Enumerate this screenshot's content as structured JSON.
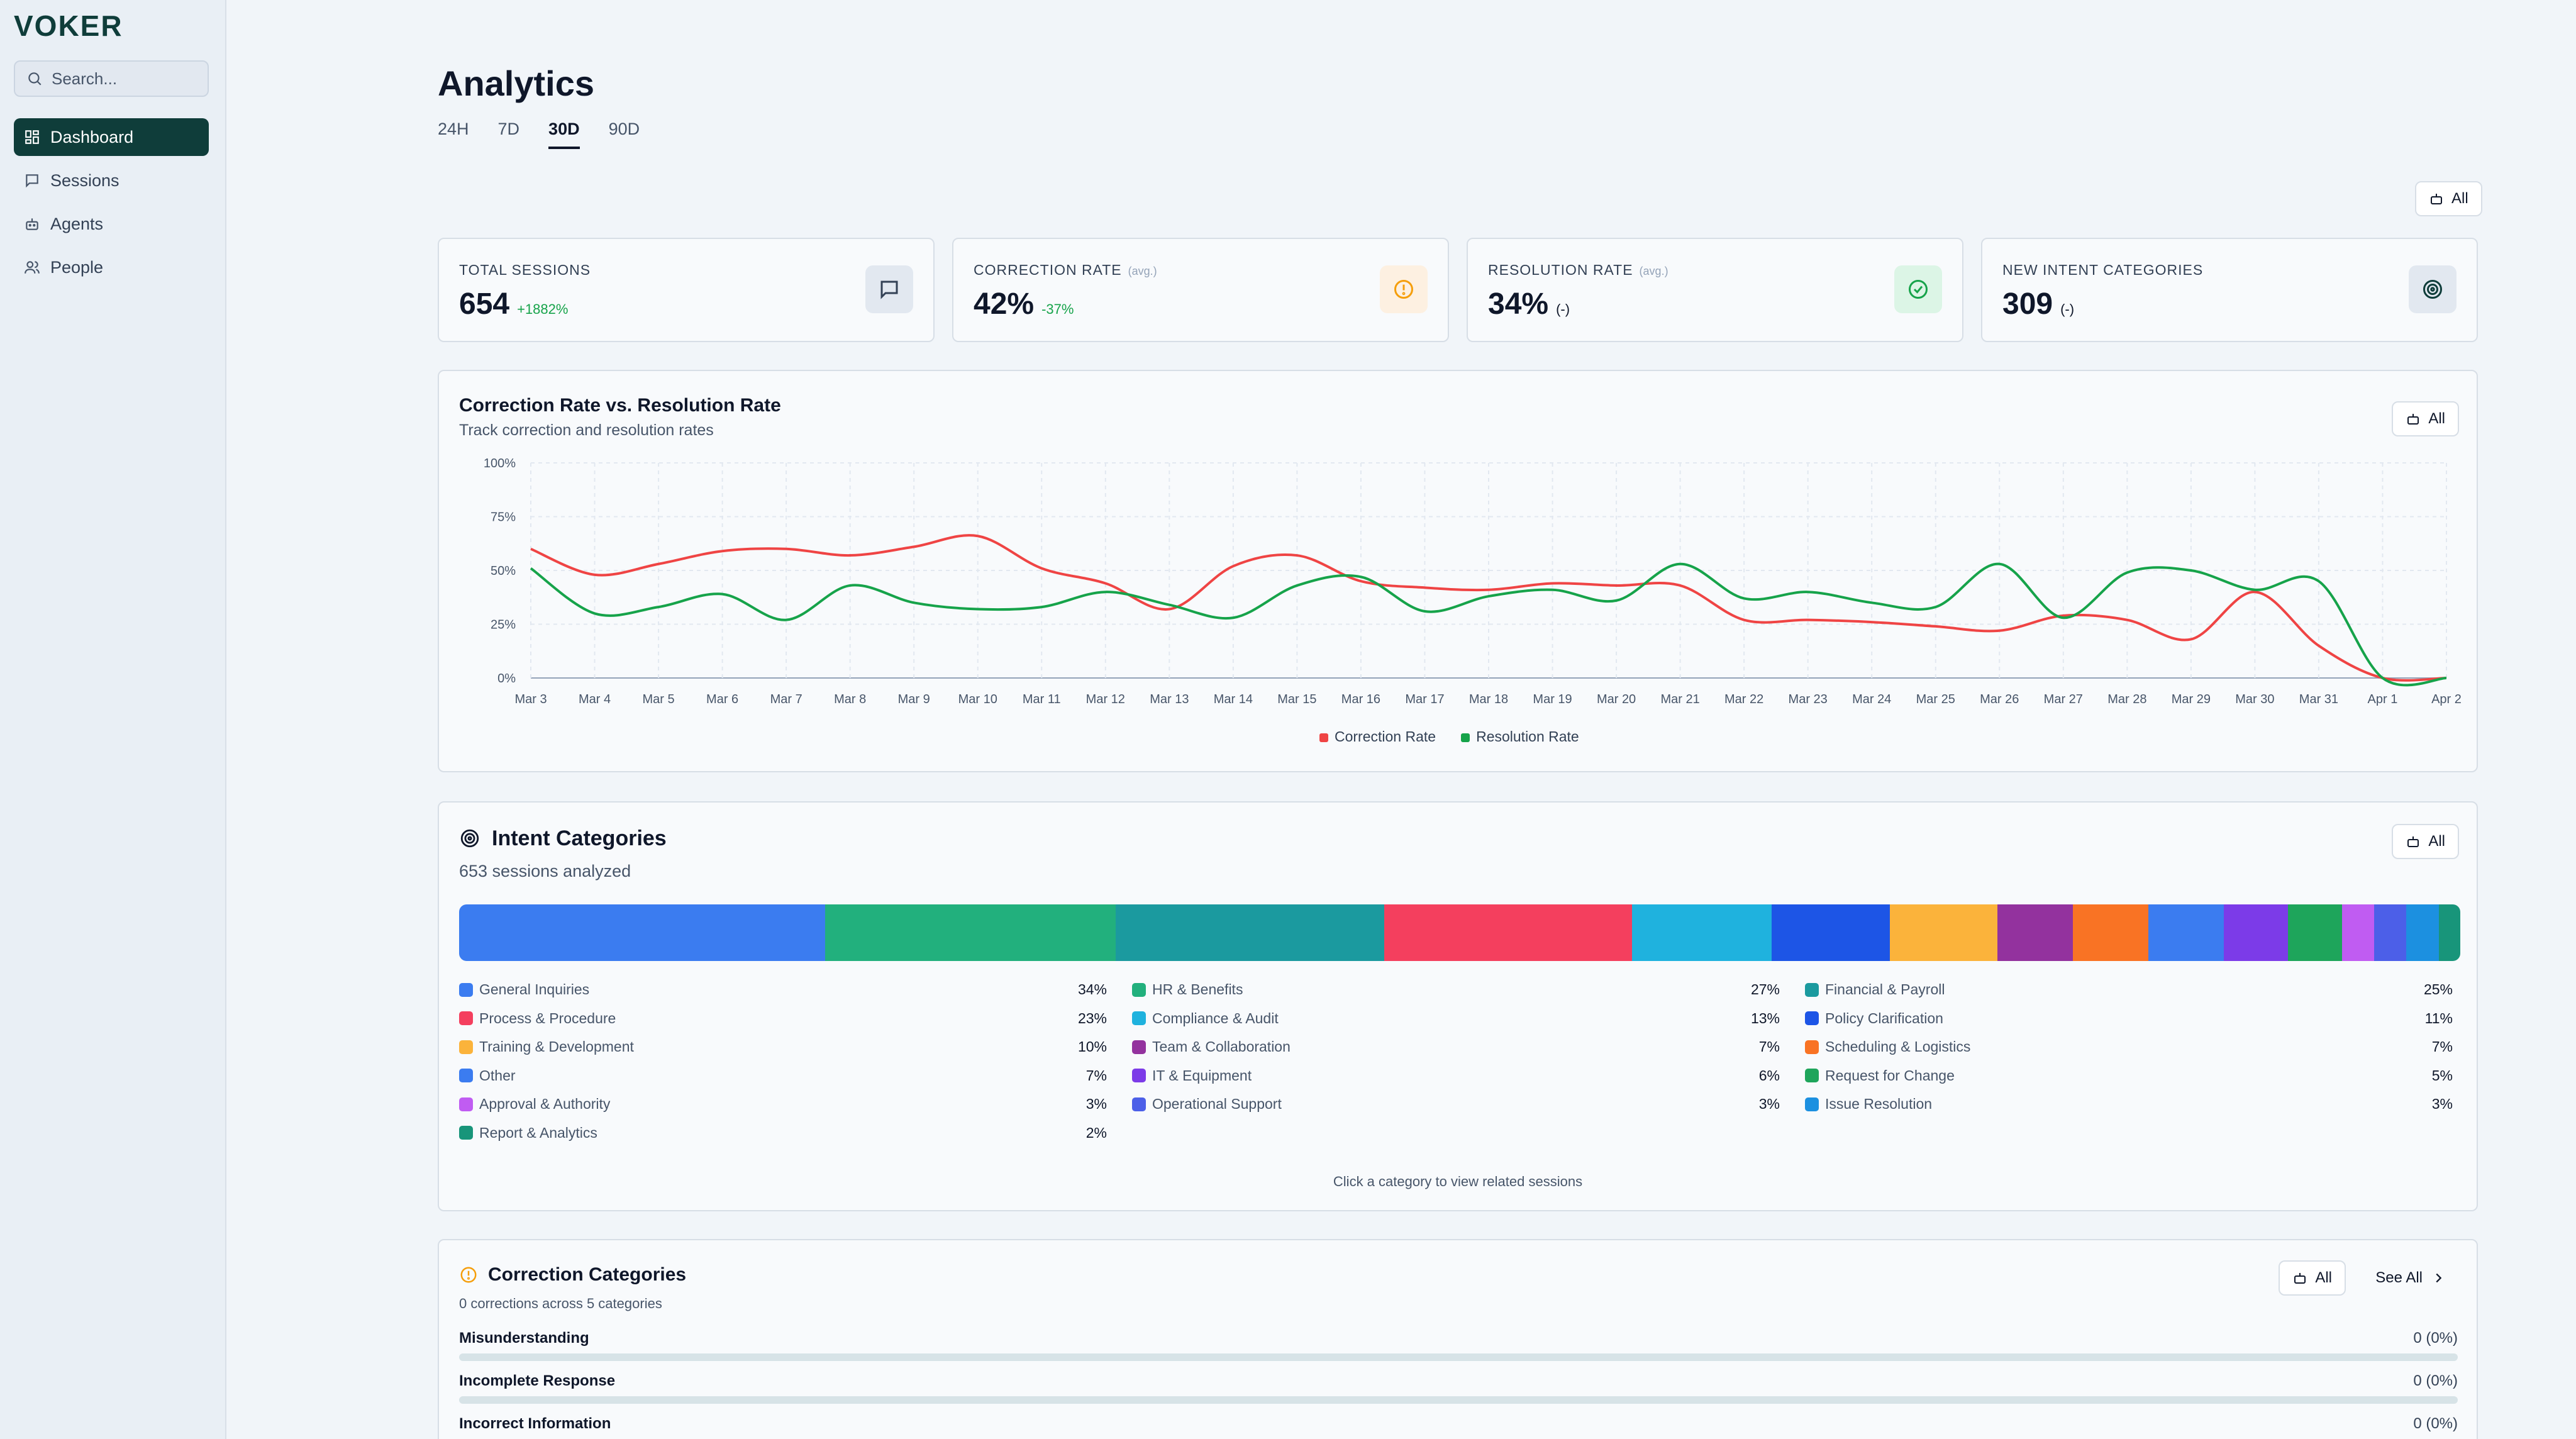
{
  "app": {
    "logo": "VOKER"
  },
  "sidebar": {
    "search_placeholder": "Search...",
    "items": [
      {
        "label": "Dashboard",
        "icon": "dashboard-icon",
        "active": true
      },
      {
        "label": "Sessions",
        "icon": "chat-icon"
      },
      {
        "label": "Agents",
        "icon": "bot-icon"
      },
      {
        "label": "People",
        "icon": "people-icon"
      }
    ]
  },
  "page": {
    "title": "Analytics",
    "tabs": [
      "24H",
      "7D",
      "30D",
      "90D"
    ],
    "active_tab": "30D",
    "filter_label": "All"
  },
  "kpis": [
    {
      "label": "TOTAL SESSIONS",
      "avg": "",
      "value": "654",
      "delta": "+1882%",
      "delta_color": "#16a34a",
      "icon": "chat-icon",
      "icon_bg": "#e2e8f0",
      "icon_color": "#334155"
    },
    {
      "label": "CORRECTION RATE",
      "avg": "(avg.)",
      "value": "42%",
      "delta": "-37%",
      "delta_color": "#16a34a",
      "icon": "alert-icon",
      "icon_bg": "#fdf0e1",
      "icon_color": "#f59e0b"
    },
    {
      "label": "RESOLUTION RATE",
      "avg": "(avg.)",
      "value": "34%",
      "delta": "(-)",
      "delta_color": "#334155",
      "icon": "check-icon",
      "icon_bg": "#dcf5e6",
      "icon_color": "#16a34a"
    },
    {
      "label": "NEW INTENT CATEGORIES",
      "avg": "",
      "value": "309",
      "delta": "(-)",
      "delta_color": "#334155",
      "icon": "target-icon",
      "icon_bg": "#e2e8f0",
      "icon_color": "#0f3d3a"
    }
  ],
  "chart_card": {
    "title": "Correction Rate vs. Resolution Rate",
    "subtitle": "Track correction and resolution rates",
    "filter_label": "All"
  },
  "chart_data": {
    "type": "line",
    "x": [
      "Mar 3",
      "Mar 4",
      "Mar 5",
      "Mar 6",
      "Mar 7",
      "Mar 8",
      "Mar 9",
      "Mar 10",
      "Mar 11",
      "Mar 12",
      "Mar 13",
      "Mar 14",
      "Mar 15",
      "Mar 16",
      "Mar 17",
      "Mar 18",
      "Mar 19",
      "Mar 20",
      "Mar 21",
      "Mar 22",
      "Mar 23",
      "Mar 24",
      "Mar 25",
      "Mar 26",
      "Mar 27",
      "Mar 28",
      "Mar 29",
      "Mar 30",
      "Mar 31",
      "Apr 1",
      "Apr 2"
    ],
    "yticks": [
      "0%",
      "25%",
      "50%",
      "75%",
      "100%"
    ],
    "ylim": [
      0,
      100
    ],
    "series": [
      {
        "name": "Correction Rate",
        "color": "#ef4444",
        "values": [
          60,
          48,
          53,
          59,
          60,
          57,
          61,
          66,
          51,
          44,
          32,
          52,
          57,
          45,
          42,
          41,
          44,
          43,
          43,
          27,
          27,
          26,
          24,
          22,
          29,
          27,
          18,
          40,
          15,
          0,
          0
        ]
      },
      {
        "name": "Resolution Rate",
        "color": "#16a34a",
        "values": [
          51,
          30,
          33,
          39,
          27,
          43,
          35,
          32,
          33,
          40,
          34,
          28,
          43,
          47,
          31,
          38,
          41,
          36,
          53,
          37,
          40,
          35,
          33,
          53,
          28,
          49,
          50,
          41,
          45,
          0,
          0
        ]
      }
    ],
    "grid": true,
    "legend": "bottom-center"
  },
  "intent": {
    "title": "Intent Categories",
    "subtitle": "653 sessions analyzed",
    "filter_label": "All",
    "hint": "Click a category to view related sessions",
    "bar": [
      {
        "color": "#3b7cf0",
        "share": 34
      },
      {
        "color": "#22b07d",
        "share": 27
      },
      {
        "color": "#1b9a9f",
        "share": 25
      },
      {
        "color": "#f43f5e",
        "share": 23
      },
      {
        "color": "#1fb2de",
        "share": 13
      },
      {
        "color": "#1d55e6",
        "share": 11
      },
      {
        "color": "#fbb33b",
        "share": 10
      },
      {
        "color": "#93329e",
        "share": 7
      },
      {
        "color": "#f97324",
        "share": 7
      },
      {
        "color": "#3b7cf0",
        "share": 7
      },
      {
        "color": "#7c3be8",
        "share": 6
      },
      {
        "color": "#1ea55b",
        "share": 5
      },
      {
        "color": "#c05cf2",
        "share": 3
      },
      {
        "color": "#4c5fe8",
        "share": 3
      },
      {
        "color": "#1c90e0",
        "share": 3
      },
      {
        "color": "#18957a",
        "share": 2
      }
    ],
    "columns": [
      [
        {
          "name": "General Inquiries",
          "pct": "34%",
          "color": "#3b7cf0"
        },
        {
          "name": "Process & Procedure",
          "pct": "23%",
          "color": "#f43f5e"
        },
        {
          "name": "Training & Development",
          "pct": "10%",
          "color": "#fbb33b"
        },
        {
          "name": "Other",
          "pct": "7%",
          "color": "#3b7cf0"
        },
        {
          "name": "Approval & Authority",
          "pct": "3%",
          "color": "#c05cf2"
        },
        {
          "name": "Report & Analytics",
          "pct": "2%",
          "color": "#18957a"
        }
      ],
      [
        {
          "name": "HR & Benefits",
          "pct": "27%",
          "color": "#22b07d"
        },
        {
          "name": "Compliance & Audit",
          "pct": "13%",
          "color": "#1fb2de"
        },
        {
          "name": "Team & Collaboration",
          "pct": "7%",
          "color": "#93329e"
        },
        {
          "name": "IT & Equipment",
          "pct": "6%",
          "color": "#7c3be8"
        },
        {
          "name": "Operational Support",
          "pct": "3%",
          "color": "#4c5fe8"
        }
      ],
      [
        {
          "name": "Financial & Payroll",
          "pct": "25%",
          "color": "#1b9a9f"
        },
        {
          "name": "Policy Clarification",
          "pct": "11%",
          "color": "#1d55e6"
        },
        {
          "name": "Scheduling & Logistics",
          "pct": "7%",
          "color": "#f97324"
        },
        {
          "name": "Request for Change",
          "pct": "5%",
          "color": "#1ea55b"
        },
        {
          "name": "Issue Resolution",
          "pct": "3%",
          "color": "#1c90e0"
        }
      ]
    ]
  },
  "corrections": {
    "title": "Correction Categories",
    "subtitle": "0 corrections across 5 categories",
    "filter_label": "All",
    "see_all": "See All",
    "rows": [
      {
        "name": "Misunderstanding",
        "value": "0 (0%)"
      },
      {
        "name": "Incomplete Response",
        "value": "0 (0%)"
      },
      {
        "name": "Incorrect Information",
        "value": "0 (0%)"
      }
    ]
  }
}
